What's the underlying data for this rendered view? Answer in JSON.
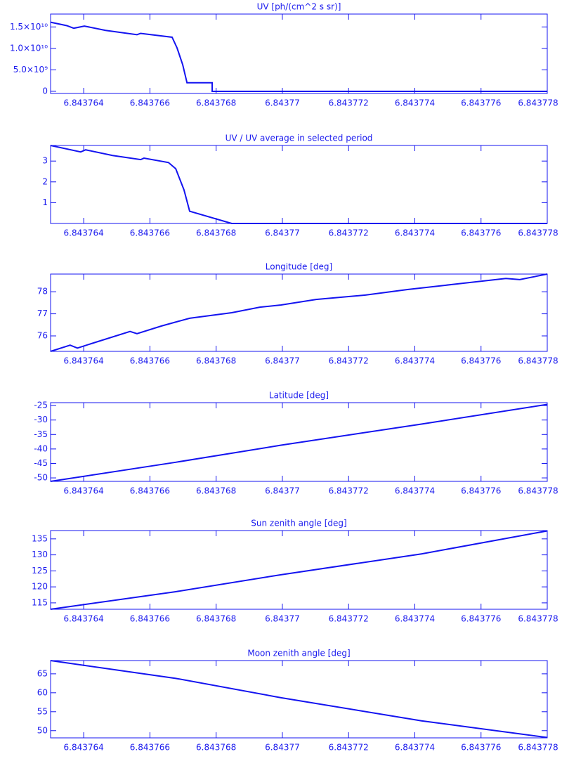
{
  "chart_data": [
    {
      "type": "line",
      "title": "UV [ph/(cm^2 s sr)]",
      "color": "#1414f0",
      "x": [
        6.843763,
        6.84376349,
        6.8437637,
        6.84376402,
        6.84376466,
        6.84376561,
        6.84376572,
        6.84376667,
        6.84376682,
        6.84376699,
        6.84376712,
        6.84376788,
        6.84376788,
        6.843778
      ],
      "values": [
        16100000000,
        15300000000,
        14700000000,
        15200000000,
        14200000000,
        13200000000,
        13500000000,
        12600000000,
        10100000000,
        6200000000,
        2000000000,
        2000000000,
        0,
        0
      ],
      "xlim": [
        6.843763,
        6.843778
      ],
      "xticks": [
        6.843764,
        6.843766,
        6.843768,
        6.84377,
        6.843772,
        6.843774,
        6.843776,
        6.843778
      ],
      "ylim": [
        -500000000,
        18000000000
      ],
      "yticks": [
        0,
        {
          "value": 5000000000,
          "label": "5.0×10⁹"
        },
        {
          "value": 10000000000,
          "label": "1.0×10¹⁰"
        },
        {
          "value": 15000000000,
          "label": "1.5×10¹⁰"
        }
      ]
    },
    {
      "type": "line",
      "title": "UV / UV average in selected period",
      "color": "#1414f0",
      "x": [
        6.843763,
        6.84376391,
        6.84376406,
        6.84376487,
        6.84376572,
        6.84376582,
        6.84376656,
        6.84376678,
        6.84376703,
        6.8437672,
        6.84376847,
        6.843778
      ],
      "values": [
        3.75,
        3.44,
        3.54,
        3.27,
        3.07,
        3.14,
        2.93,
        2.63,
        1.61,
        0.59,
        0,
        0
      ],
      "xlim": [
        6.843763,
        6.843778
      ],
      "xticks": [
        6.843764,
        6.843766,
        6.843768,
        6.84377,
        6.843772,
        6.843774,
        6.843776,
        6.843778
      ],
      "ylim": [
        0,
        3.75
      ],
      "yticks": [
        1,
        2,
        3
      ]
    },
    {
      "type": "line",
      "title": "Longitude [deg]",
      "color": "#1414f0",
      "x": [
        6.843763,
        6.84376359,
        6.84376381,
        6.84376444,
        6.8437654,
        6.84376561,
        6.84376635,
        6.8437672,
        6.84376847,
        6.84376932,
        6.84376996,
        6.84377102,
        6.84377251,
        6.84377378,
        6.84377526,
        6.84377675,
        6.84377717,
        6.843778
      ],
      "values": [
        75.3,
        75.58,
        75.45,
        75.75,
        76.2,
        76.1,
        76.45,
        76.8,
        77.05,
        77.3,
        77.4,
        77.65,
        77.85,
        78.1,
        78.35,
        78.6,
        78.55,
        78.8
      ],
      "xlim": [
        6.843763,
        6.843778
      ],
      "xticks": [
        6.843764,
        6.843766,
        6.843768,
        6.84377,
        6.843772,
        6.843774,
        6.843776,
        6.843778
      ],
      "ylim": [
        75.3,
        78.8
      ],
      "yticks": [
        76,
        77,
        78
      ]
    },
    {
      "type": "line",
      "title": "Latitude [deg]",
      "color": "#1414f0",
      "x": [
        6.843763,
        6.84376678,
        6.84376996,
        6.8437742,
        6.843778
      ],
      "values": [
        -51.2,
        -44.6,
        -38.7,
        -31.4,
        -24.6
      ],
      "xlim": [
        6.843763,
        6.843778
      ],
      "xticks": [
        6.843764,
        6.843766,
        6.843768,
        6.84377,
        6.843772,
        6.843774,
        6.843776,
        6.843778
      ],
      "ylim": [
        -51.2,
        -24
      ],
      "yticks": [
        -50,
        -45,
        -40,
        -35,
        -30,
        -25
      ]
    },
    {
      "type": "line",
      "title": "Sun zenith angle [deg]",
      "color": "#1414f0",
      "x": [
        6.843763,
        6.84376678,
        6.84376996,
        6.8437742,
        6.843778
      ],
      "values": [
        113,
        118.5,
        123.8,
        130.3,
        137.5
      ],
      "xlim": [
        6.843763,
        6.843778
      ],
      "xticks": [
        6.843764,
        6.843766,
        6.843768,
        6.84377,
        6.843772,
        6.843774,
        6.843776,
        6.843778
      ],
      "ylim": [
        113,
        137.6
      ],
      "yticks": [
        115,
        120,
        125,
        130,
        135
      ]
    },
    {
      "type": "line",
      "title": "Moon zenith angle [deg]",
      "color": "#1414f0",
      "x": [
        6.843763,
        6.84376678,
        6.84376996,
        6.8437742,
        6.843778
      ],
      "values": [
        68.5,
        63.8,
        58.7,
        52.6,
        48.2
      ],
      "xlim": [
        6.843763,
        6.843778
      ],
      "xticks": [
        6.843764,
        6.843766,
        6.843768,
        6.84377,
        6.843772,
        6.843774,
        6.843776,
        6.843778
      ],
      "ylim": [
        48.1,
        68.5
      ],
      "yticks": [
        50,
        55,
        60,
        65
      ]
    }
  ]
}
